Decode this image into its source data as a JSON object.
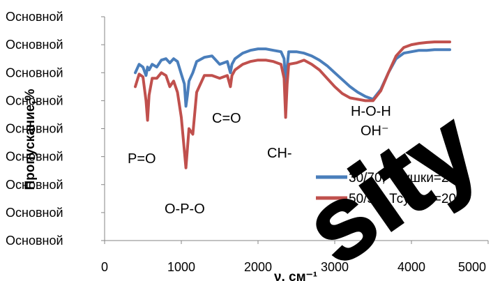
{
  "chart_data": {
    "type": "line",
    "xlabel": "ν, см⁻¹",
    "ylabel": "Пропускание,%",
    "xlim": [
      0,
      5000
    ],
    "xticks": [
      "0",
      "1000",
      "2000",
      "3000",
      "4000",
      "5000"
    ],
    "yticks": [
      "Основной",
      "Основной",
      "Основной",
      "Основной",
      "Основной",
      "Основной",
      "Основной",
      "Основной",
      "Основной"
    ],
    "ylim": [
      0,
      8
    ],
    "grid": false,
    "legend_position": "right",
    "series": [
      {
        "name": "30/70, Тсушки=200",
        "color": "#4a7ebb",
        "x": [
          400,
          450,
          500,
          540,
          560,
          580,
          620,
          680,
          740,
          800,
          850,
          900,
          950,
          1000,
          1040,
          1060,
          1080,
          1100,
          1150,
          1200,
          1300,
          1400,
          1500,
          1600,
          1640,
          1660,
          1700,
          1800,
          1900,
          2000,
          2100,
          2200,
          2300,
          2340,
          2360,
          2380,
          2400,
          2500,
          2600,
          2700,
          2800,
          2900,
          3000,
          3100,
          3200,
          3300,
          3400,
          3500,
          3600,
          3700,
          3800,
          3900,
          4000,
          4100,
          4200,
          4300,
          4500
        ],
        "y": [
          6.0,
          6.3,
          6.2,
          5.9,
          6.2,
          6.1,
          6.3,
          6.2,
          6.45,
          6.5,
          6.35,
          6.5,
          6.4,
          5.95,
          5.6,
          4.8,
          5.2,
          5.7,
          6.0,
          6.4,
          6.55,
          6.6,
          6.3,
          6.4,
          6.0,
          6.3,
          6.5,
          6.7,
          6.8,
          6.85,
          6.85,
          6.8,
          6.75,
          6.5,
          5.6,
          6.2,
          6.75,
          6.75,
          6.7,
          6.6,
          6.45,
          6.25,
          6.0,
          5.75,
          5.5,
          5.3,
          5.15,
          5.05,
          5.4,
          6.0,
          6.5,
          6.7,
          6.75,
          6.8,
          6.8,
          6.82,
          6.82
        ]
      },
      {
        "name": "50/50, Тсушки=200",
        "color": "#c0504d",
        "x": [
          400,
          450,
          500,
          540,
          560,
          580,
          620,
          680,
          740,
          800,
          850,
          900,
          950,
          1000,
          1040,
          1060,
          1080,
          1100,
          1150,
          1200,
          1300,
          1400,
          1500,
          1600,
          1640,
          1660,
          1700,
          1800,
          1900,
          2000,
          2100,
          2200,
          2300,
          2340,
          2360,
          2380,
          2400,
          2500,
          2600,
          2700,
          2800,
          2900,
          3000,
          3100,
          3200,
          3300,
          3400,
          3500,
          3600,
          3700,
          3800,
          3900,
          4000,
          4100,
          4200,
          4300,
          4500
        ],
        "y": [
          5.5,
          5.95,
          5.85,
          5.0,
          4.3,
          5.2,
          5.8,
          5.8,
          6.0,
          5.9,
          5.5,
          5.7,
          5.3,
          4.4,
          3.2,
          2.6,
          3.3,
          4.0,
          3.8,
          5.3,
          5.9,
          5.9,
          5.8,
          5.9,
          5.5,
          5.9,
          6.1,
          6.3,
          6.4,
          6.45,
          6.45,
          6.4,
          6.3,
          5.8,
          4.4,
          5.6,
          6.3,
          6.35,
          6.45,
          6.3,
          6.1,
          5.8,
          5.5,
          5.25,
          5.1,
          5.05,
          5.0,
          5.0,
          5.35,
          6.0,
          6.6,
          6.9,
          7.0,
          7.05,
          7.08,
          7.1,
          7.1
        ]
      }
    ],
    "annotations": [
      "P=O",
      "O-P-O",
      "C=O",
      "CH-",
      "H-O-H",
      "OH⁻"
    ]
  },
  "watermark_text": "sity"
}
